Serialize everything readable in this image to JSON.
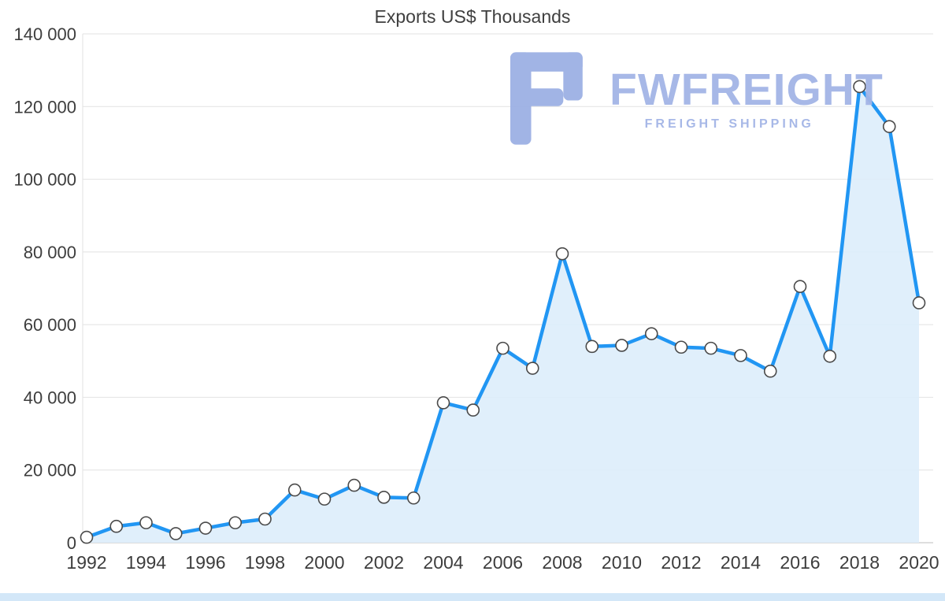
{
  "chart": {
    "title": "Exports US$ Thousands"
  },
  "chart_data": {
    "type": "area",
    "title": "Exports US$ Thousands",
    "xlabel": "",
    "ylabel": "",
    "x": [
      1992,
      1993,
      1994,
      1995,
      1996,
      1997,
      1998,
      1999,
      2000,
      2001,
      2002,
      2003,
      2004,
      2005,
      2006,
      2007,
      2008,
      2009,
      2010,
      2011,
      2012,
      2013,
      2014,
      2015,
      2016,
      2017,
      2018,
      2019,
      2020
    ],
    "series": [
      {
        "name": "Exports US$ Thousands",
        "values": [
          1500,
          4500,
          5500,
          2500,
          4000,
          5500,
          6500,
          14500,
          12000,
          15800,
          12500,
          12300,
          38500,
          36500,
          53500,
          48000,
          79500,
          54000,
          54300,
          57500,
          53800,
          53500,
          51500,
          47200,
          70500,
          51300,
          125500,
          114500,
          66000
        ]
      }
    ],
    "ylim": [
      0,
      140000
    ],
    "ytick_interval": 20000,
    "ytick_labels": [
      "0",
      "20 000",
      "40 000",
      "60 000",
      "80 000",
      "100 000",
      "120 000",
      "140 000"
    ],
    "xtick_labels": [
      "1992",
      "1994",
      "1996",
      "1998",
      "2000",
      "2002",
      "2004",
      "2006",
      "2008",
      "2010",
      "2012",
      "2014",
      "2016",
      "2018",
      "2020"
    ],
    "grid": true,
    "legend": "none"
  },
  "watermark": {
    "brand": "FWFREIGHT",
    "tagline": "FREIGHT SHIPPING",
    "color": "#a3b5e6"
  },
  "colors": {
    "line": "#2196f3",
    "area": "#ddedfb",
    "grid": "#e2e2e2",
    "axis_line": "#bdbdbd",
    "axis_text": "#3d3d3d",
    "marker_fill": "#ffffff",
    "marker_stroke": "#4a4a4a",
    "bottom_bar": "#d3e7f8"
  }
}
